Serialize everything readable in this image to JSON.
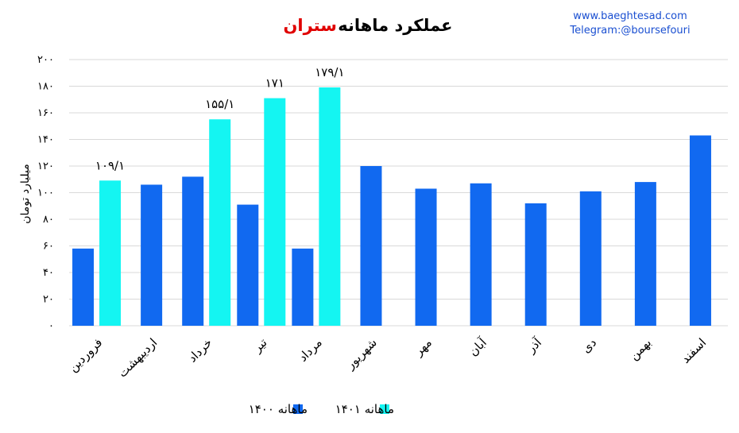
{
  "header": {
    "title_main": "عملکرد ماهانه",
    "title_highlight": "ستران",
    "website": "www.baeghtesad.com",
    "telegram": "Telegram:@boursefouri"
  },
  "colors": {
    "series_1400": "#1169f0",
    "series_1401": "#14f5f2",
    "title_highlight": "#e00000",
    "brand_text": "#1a4fd1",
    "gridline": "#d9d9d9"
  },
  "chart_data": {
    "type": "bar",
    "title": "عملکرد ماهانه ستران",
    "ylabel": "میلیارد تومان",
    "xlabel": "",
    "ylim": [
      0,
      200
    ],
    "yticks": [
      0,
      20,
      40,
      60,
      80,
      100,
      120,
      140,
      160,
      180,
      200
    ],
    "ytick_labels": [
      "۰",
      "۲۰",
      "۴۰",
      "۶۰",
      "۸۰",
      "۱۰۰",
      "۱۲۰",
      "۱۴۰",
      "۱۶۰",
      "۱۸۰",
      "۲۰۰"
    ],
    "grid": true,
    "legend_position": "bottom",
    "categories": [
      "فروردین",
      "اردیبهشت",
      "خرداد",
      "تیر",
      "مرداد",
      "شهریور",
      "مهر",
      "آبان",
      "آذر",
      "دی",
      "بهمن",
      "اسفند"
    ],
    "series": [
      {
        "name": "ماهانه ۱۴۰۰",
        "values": [
          58,
          106,
          112,
          91,
          58,
          120,
          103,
          107,
          92,
          101,
          108,
          143
        ]
      },
      {
        "name": "ماهانه ۱۴۰۱",
        "values": [
          109.1,
          null,
          155.1,
          171,
          179.1,
          null,
          null,
          null,
          null,
          null,
          null,
          null
        ],
        "data_labels": [
          "۱۰۹/۱",
          "",
          "۱۵۵/۱",
          "۱۷۱",
          "۱۷۹/۱",
          "",
          "",
          "",
          "",
          "",
          "",
          ""
        ]
      }
    ]
  }
}
